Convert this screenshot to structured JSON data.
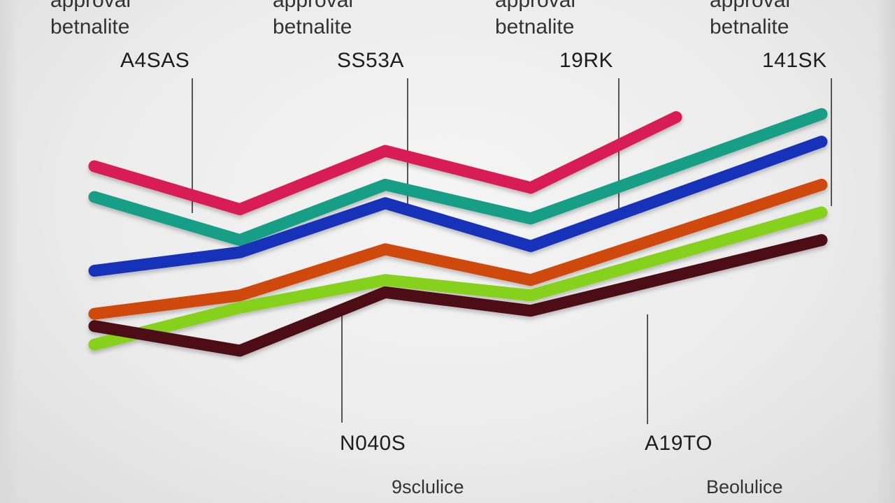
{
  "chart_data": {
    "type": "line",
    "x": [
      0,
      1,
      2,
      3,
      4,
      5
    ],
    "ylim": [
      0,
      100
    ],
    "xlim": [
      0,
      5
    ],
    "grid": false,
    "legend": "none",
    "series": [
      {
        "color": "#d81b55",
        "values": [
          80,
          66,
          85,
          73,
          96,
          null
        ]
      },
      {
        "color": "#159e86",
        "values": [
          70,
          56,
          74,
          63,
          null,
          97
        ]
      },
      {
        "color": "#1533b8",
        "values": [
          46,
          52,
          68,
          54,
          null,
          88
        ]
      },
      {
        "color": "#cf4a10",
        "values": [
          32,
          38,
          53,
          43,
          null,
          74
        ]
      },
      {
        "color": "#86d11c",
        "values": [
          22,
          34,
          43,
          38,
          null,
          65
        ]
      },
      {
        "color": "#4d0a16",
        "values": [
          28,
          20,
          39,
          33,
          null,
          56
        ]
      }
    ],
    "annotations": {
      "top_captions": [
        {
          "line1": "approval",
          "line2": "betnalite"
        },
        {
          "line1": "approval",
          "line2": "betnalite"
        },
        {
          "line1": "approval",
          "line2": "betnalite"
        },
        {
          "line1": "approval",
          "line2": "betnalite"
        }
      ],
      "top_values": [
        "A4SAS",
        "SS53A",
        "19RK",
        "141SK"
      ],
      "bottom_values": [
        "N040S",
        "A19TO"
      ],
      "footer_captions": [
        "9sclulice",
        "Beolulice"
      ]
    }
  }
}
